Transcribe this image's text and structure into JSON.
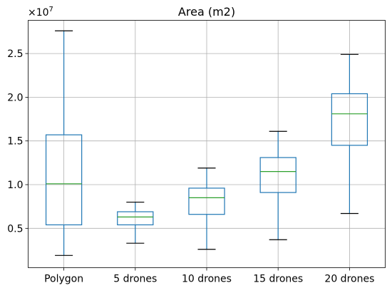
{
  "chart_data": {
    "type": "boxplot",
    "title": "Area (m2)",
    "xlabel": "",
    "ylabel": "",
    "y_scale_offset": "×10",
    "y_scale_exponent": "7",
    "ylim": [
      0.05,
      2.88
    ],
    "yticks": [
      0.5,
      1.0,
      1.5,
      2.0,
      2.5
    ],
    "ytick_labels": [
      "0.5",
      "1.0",
      "1.5",
      "2.0",
      "2.5"
    ],
    "grid": true,
    "colors": {
      "box": "#1f77b4",
      "median": "#2ca02c",
      "cap": "#000000",
      "grid": "#b0b0b0"
    },
    "categories": [
      "Polygon",
      "5 drones",
      "10 drones",
      "15 drones",
      "20 drones"
    ],
    "boxes": [
      {
        "whisker_low": 0.19,
        "q1": 0.54,
        "median": 1.01,
        "q3": 1.57,
        "whisker_high": 2.76
      },
      {
        "whisker_low": 0.33,
        "q1": 0.54,
        "median": 0.63,
        "q3": 0.69,
        "whisker_high": 0.8
      },
      {
        "whisker_low": 0.26,
        "q1": 0.66,
        "median": 0.85,
        "q3": 0.96,
        "whisker_high": 1.19
      },
      {
        "whisker_low": 0.37,
        "q1": 0.91,
        "median": 1.15,
        "q3": 1.31,
        "whisker_high": 1.61
      },
      {
        "whisker_low": 0.67,
        "q1": 1.45,
        "median": 1.81,
        "q3": 2.04,
        "whisker_high": 2.49
      }
    ]
  }
}
